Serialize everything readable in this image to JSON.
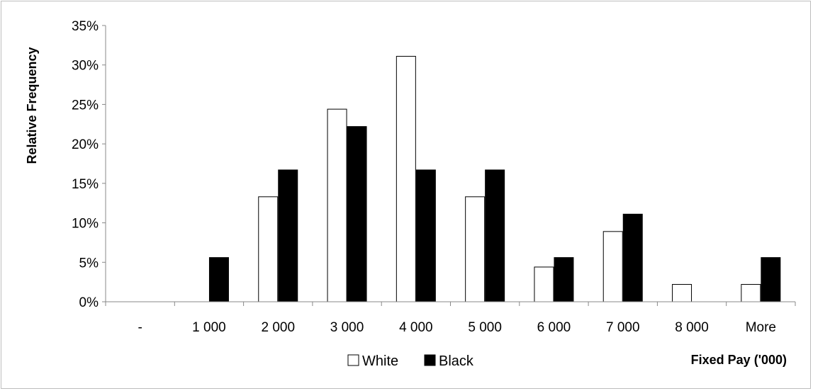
{
  "chart_data": {
    "type": "bar",
    "title": "",
    "xlabel": "Fixed Pay ('000)",
    "ylabel": "Relative Frequency",
    "categories": [
      "-",
      "1 000",
      "2 000",
      "3 000",
      "4 000",
      "5 000",
      "6 000",
      "7 000",
      "8 000",
      "More"
    ],
    "ylim": [
      0,
      0.35
    ],
    "yticks": [
      0,
      0.05,
      0.1,
      0.15,
      0.2,
      0.25,
      0.3,
      0.35
    ],
    "ytick_labels": [
      "0%",
      "5%",
      "10%",
      "15%",
      "20%",
      "25%",
      "30%",
      "35%"
    ],
    "series": [
      {
        "name": "White",
        "fill": "#ffffff",
        "stroke": "#000000",
        "values": [
          0,
          0,
          0.133,
          0.244,
          0.311,
          0.133,
          0.044,
          0.089,
          0.022,
          0.022
        ]
      },
      {
        "name": "Black",
        "fill": "#000000",
        "stroke": "#000000",
        "values": [
          0,
          0.056,
          0.167,
          0.222,
          0.167,
          0.167,
          0.056,
          0.111,
          0,
          0.056
        ]
      }
    ],
    "grid": false,
    "legend_position": "bottom-center"
  }
}
